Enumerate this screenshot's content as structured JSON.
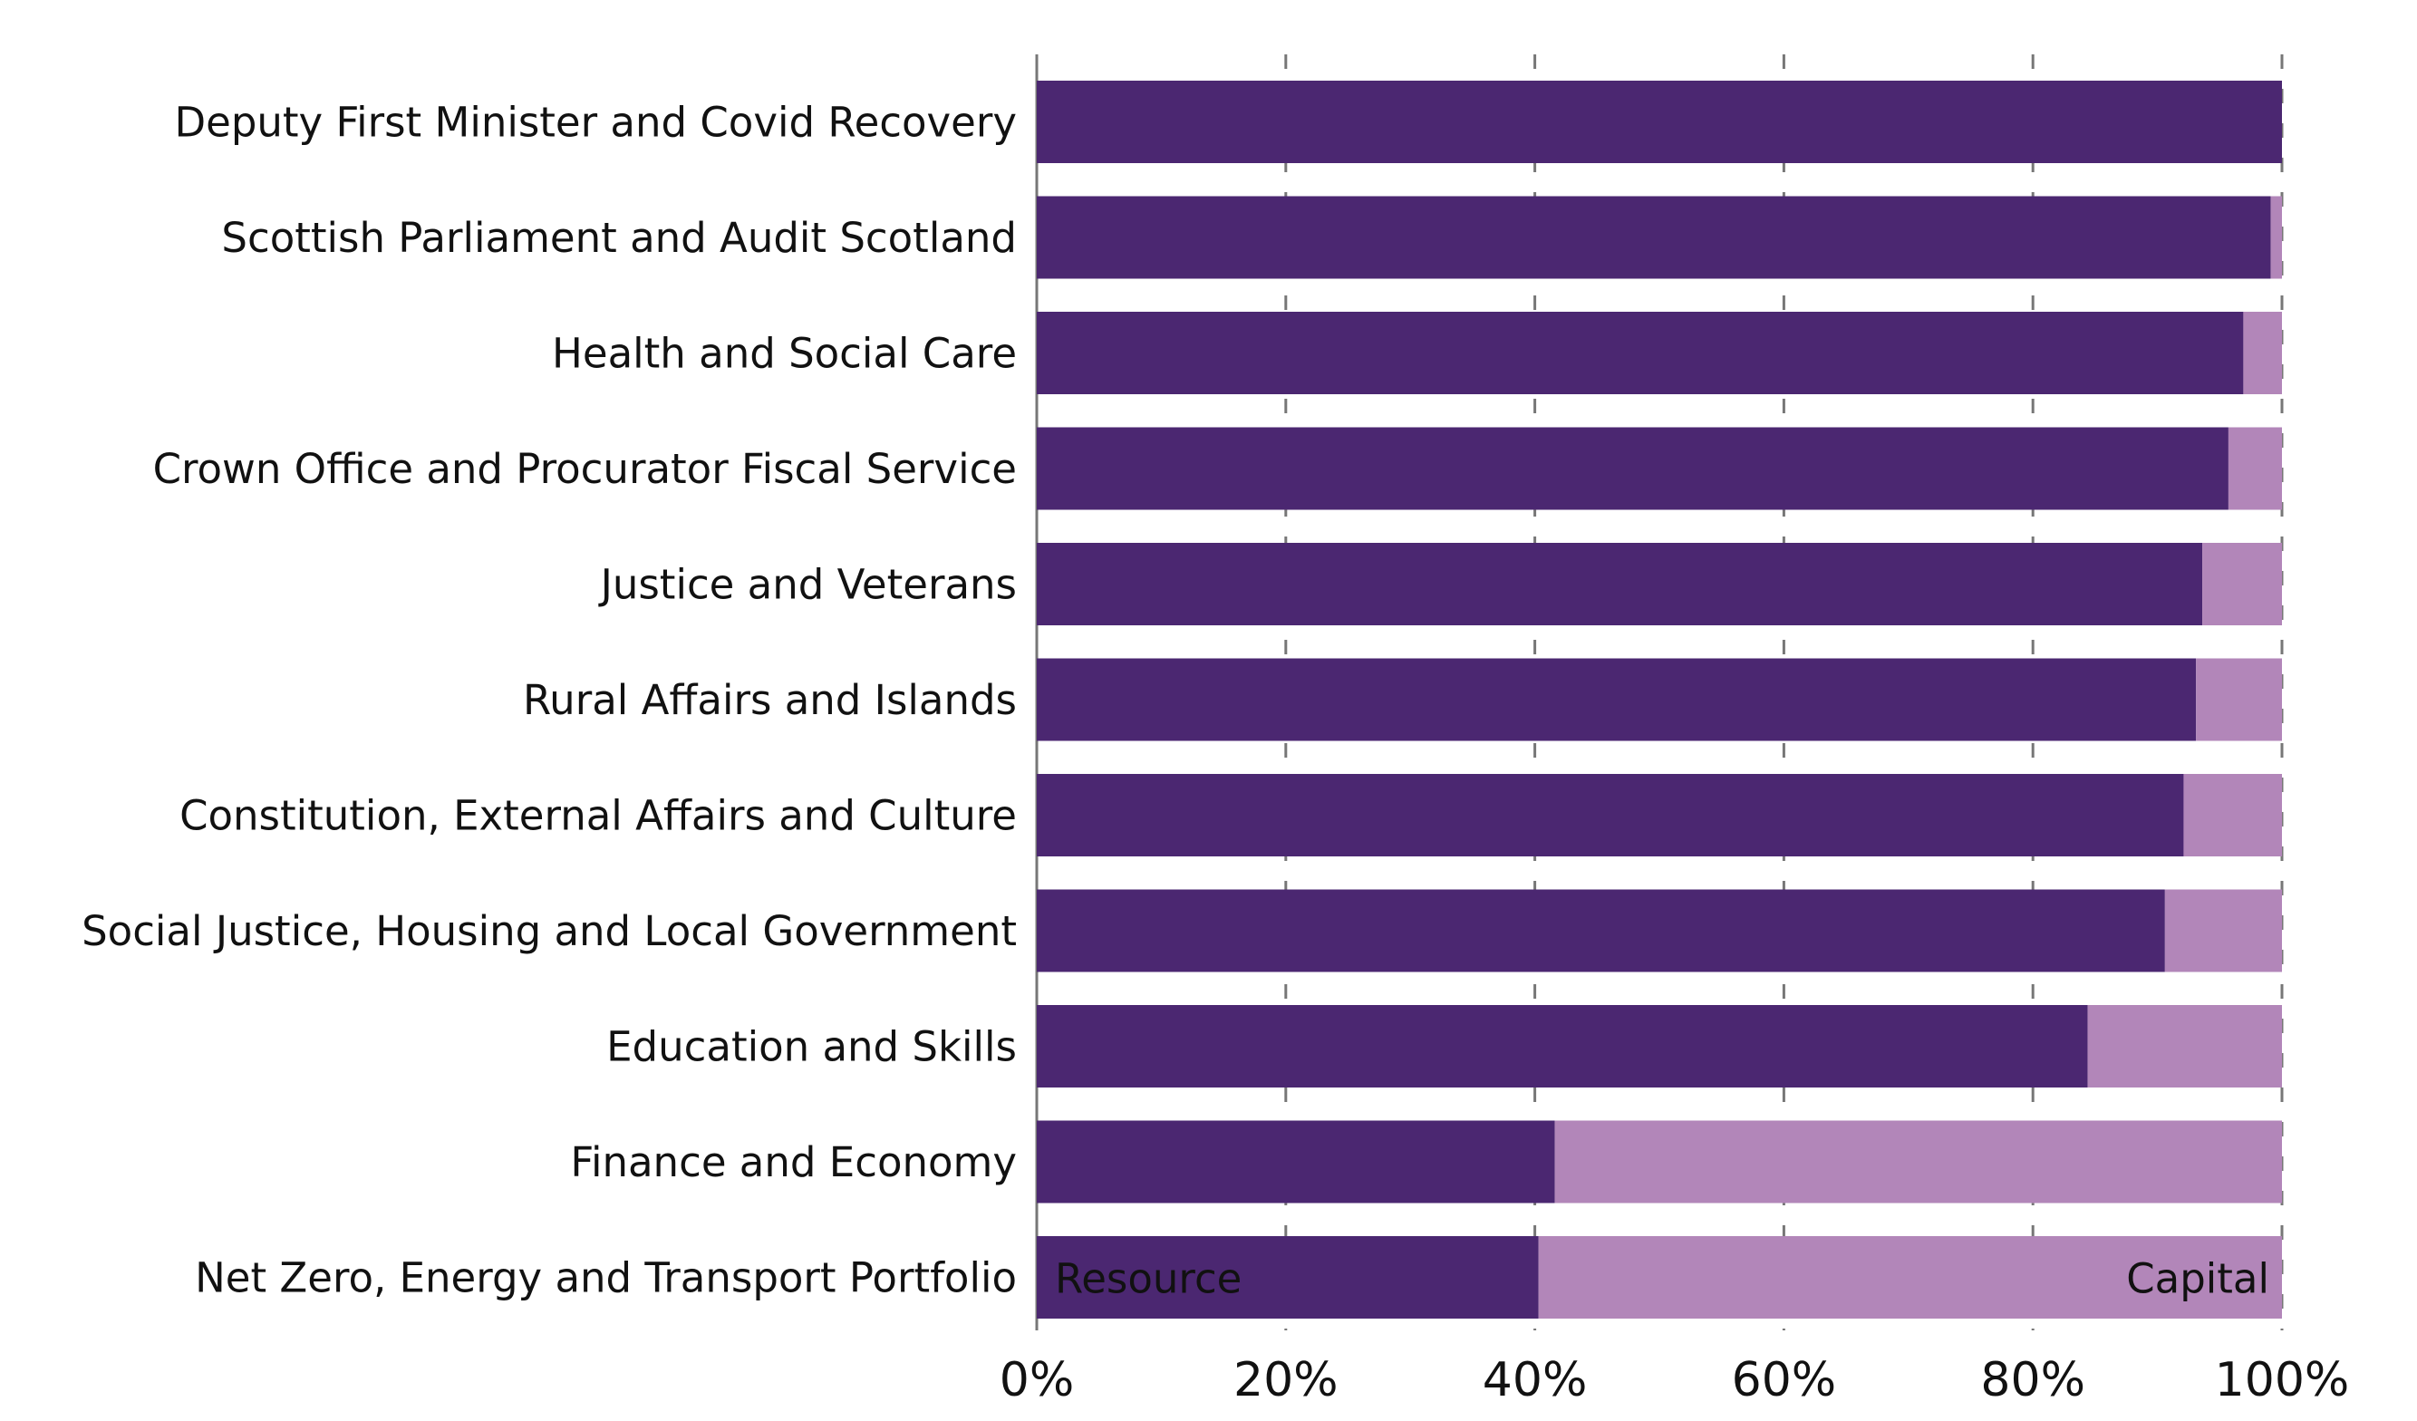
{
  "chart_data": {
    "type": "bar",
    "orientation": "horizontal",
    "stacked": true,
    "categories": [
      "Deputy First Minister and Covid Recovery",
      "Scottish Parliament and Audit Scotland",
      "Health and Social Care",
      "Crown Office and Procurator Fiscal Service",
      "Justice and Veterans",
      "Rural Affairs and Islands",
      "Constitution, External Affairs and Culture",
      "Social Justice, Housing and Local Government",
      "Education and Skills",
      "Finance and Economy",
      "Net Zero, Energy and Transport Portfolio"
    ],
    "series": [
      {
        "name": "Resource",
        "color": "#4b2771",
        "values": [
          100,
          99.1,
          96.9,
          95.7,
          93.6,
          93.1,
          92.1,
          90.6,
          84.4,
          41.6,
          40.3
        ]
      },
      {
        "name": "Capital",
        "color": "#b286b9",
        "values": [
          0,
          0.9,
          3.1,
          4.3,
          6.4,
          6.9,
          7.9,
          9.4,
          15.6,
          58.4,
          59.7
        ]
      }
    ],
    "xlim": [
      0,
      100
    ],
    "x_ticks": [
      "0%",
      "20%",
      "40%",
      "60%",
      "80%",
      "100%"
    ],
    "grid": "vertical dashed",
    "legend": "inline labels on last bar"
  }
}
